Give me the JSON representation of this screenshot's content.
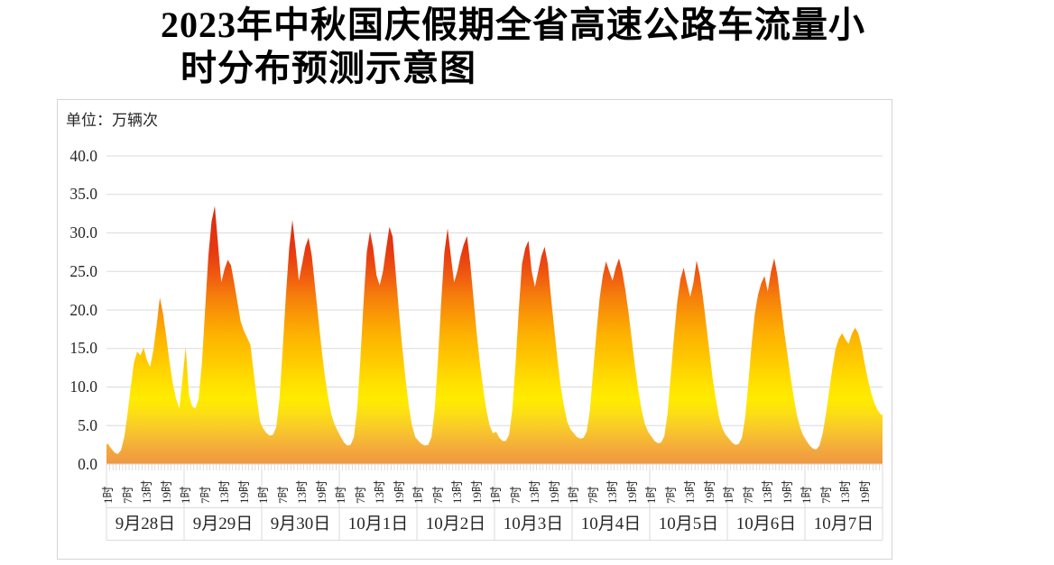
{
  "title": {
    "line1": "2023年中秋国庆假期全省高速公路车流量小",
    "line2": "时分布预测示意图"
  },
  "chart_data": {
    "type": "area",
    "title": "2023年中秋国庆假期全省高速公路车流量小时分布预测示意图",
    "unit_label": "单位：万辆次",
    "ylabel": "万辆次",
    "xlabel": "",
    "grid": true,
    "legend": "none",
    "y_axis": {
      "min": 0,
      "max": 40,
      "step": 5,
      "ticks": [
        "40.0",
        "35.0",
        "30.0",
        "25.0",
        "20.0",
        "15.0",
        "10.0",
        "5.0",
        "0.0"
      ]
    },
    "x_axis": {
      "hours_per_day": 24,
      "hour_labels": [
        "1时",
        "7时",
        "13时",
        "19时"
      ],
      "hour_label_positions": [
        1,
        7,
        13,
        19
      ]
    },
    "days": [
      {
        "label": "9月28日",
        "values": [
          2.6,
          2.0,
          1.5,
          1.3,
          1.8,
          3.5,
          6.5,
          10.0,
          13.2,
          14.6,
          14.1,
          15.1,
          13.5,
          12.6,
          14.8,
          18.0,
          21.6,
          19.5,
          16.5,
          13.2,
          10.5,
          8.5,
          7.2,
          11.0
        ]
      },
      {
        "label": "9月29日",
        "values": [
          15.2,
          9.0,
          7.5,
          7.2,
          8.5,
          13.0,
          20.0,
          27.0,
          31.5,
          33.5,
          28.5,
          23.6,
          25.3,
          26.5,
          25.8,
          23.5,
          21.0,
          18.5,
          17.3,
          16.4,
          15.5,
          12.0,
          8.5,
          5.5
        ]
      },
      {
        "label": "9月30日",
        "values": [
          4.6,
          4.0,
          3.7,
          3.8,
          4.8,
          8.5,
          15.0,
          22.0,
          28.0,
          31.7,
          28.0,
          23.8,
          26.0,
          28.2,
          29.4,
          27.0,
          23.0,
          19.0,
          15.0,
          11.5,
          8.8,
          6.5,
          5.2,
          4.3
        ]
      },
      {
        "label": "10月1日",
        "values": [
          3.5,
          2.8,
          2.4,
          2.5,
          3.5,
          7.0,
          13.5,
          21.0,
          27.5,
          30.2,
          28.0,
          24.5,
          23.2,
          25.0,
          28.0,
          30.8,
          29.5,
          24.5,
          19.5,
          15.0,
          11.0,
          7.5,
          5.0,
          3.5
        ]
      },
      {
        "label": "10月2日",
        "values": [
          3.0,
          2.6,
          2.4,
          2.5,
          3.5,
          7.0,
          13.5,
          21.0,
          27.5,
          30.6,
          27.0,
          23.6,
          25.0,
          27.0,
          28.5,
          29.6,
          26.0,
          21.5,
          17.0,
          13.0,
          9.8,
          7.0,
          5.0,
          4.0
        ]
      },
      {
        "label": "10月3日",
        "values": [
          4.2,
          3.4,
          3.0,
          3.0,
          3.8,
          7.0,
          13.0,
          20.0,
          26.0,
          28.0,
          29.0,
          25.0,
          23.0,
          25.0,
          27.0,
          28.2,
          26.0,
          21.5,
          17.5,
          13.5,
          10.0,
          7.5,
          5.5,
          4.5
        ]
      },
      {
        "label": "10月4日",
        "values": [
          4.0,
          3.5,
          3.3,
          3.4,
          4.2,
          7.0,
          12.0,
          17.0,
          21.5,
          24.5,
          26.3,
          25.0,
          23.8,
          25.5,
          26.7,
          25.0,
          22.5,
          19.5,
          16.0,
          12.5,
          9.5,
          7.0,
          5.2,
          4.2
        ]
      },
      {
        "label": "10月5日",
        "values": [
          3.6,
          3.0,
          2.7,
          2.8,
          3.6,
          6.5,
          11.5,
          16.5,
          21.0,
          24.0,
          25.5,
          23.5,
          21.7,
          23.5,
          26.4,
          24.5,
          21.5,
          18.0,
          14.5,
          11.0,
          8.3,
          6.0,
          4.6,
          3.8
        ]
      },
      {
        "label": "10月6日",
        "values": [
          3.3,
          2.8,
          2.5,
          2.6,
          3.4,
          6.0,
          10.5,
          15.5,
          19.5,
          22.0,
          23.5,
          24.4,
          22.4,
          25.0,
          26.7,
          24.5,
          21.0,
          17.5,
          14.5,
          11.5,
          8.8,
          6.4,
          4.8,
          3.7
        ]
      },
      {
        "label": "10月7日",
        "values": [
          3.0,
          2.4,
          2.0,
          1.9,
          2.4,
          4.0,
          6.5,
          9.5,
          12.5,
          15.0,
          16.3,
          17.0,
          16.2,
          15.6,
          16.9,
          17.7,
          17.0,
          15.3,
          13.0,
          10.9,
          9.2,
          7.9,
          7.0,
          6.4
        ]
      }
    ],
    "colors": {
      "gradient": [
        {
          "value": 40,
          "color": "#D92C10"
        },
        {
          "value": 33.5,
          "color": "#E63711"
        },
        {
          "value": 31,
          "color": "#EB4A11"
        },
        {
          "value": 28.5,
          "color": "#F1620F"
        },
        {
          "value": 26,
          "color": "#F67E0B"
        },
        {
          "value": 23,
          "color": "#FA9905"
        },
        {
          "value": 20,
          "color": "#FDB201"
        },
        {
          "value": 17,
          "color": "#FFC400"
        },
        {
          "value": 14.5,
          "color": "#FFD400"
        },
        {
          "value": 12,
          "color": "#FFE300"
        },
        {
          "value": 10,
          "color": "#FFEB00"
        },
        {
          "value": 8,
          "color": "#FCDF13"
        },
        {
          "value": 6,
          "color": "#F9CE26"
        },
        {
          "value": 4,
          "color": "#F6BA33"
        },
        {
          "value": 2,
          "color": "#F3A63D"
        },
        {
          "value": 0,
          "color": "#F09843"
        }
      ],
      "gridline": "#dbdbdb",
      "tick": "#c9d3cc",
      "panel_border": "#d4d4d4",
      "text": "#262626"
    }
  }
}
